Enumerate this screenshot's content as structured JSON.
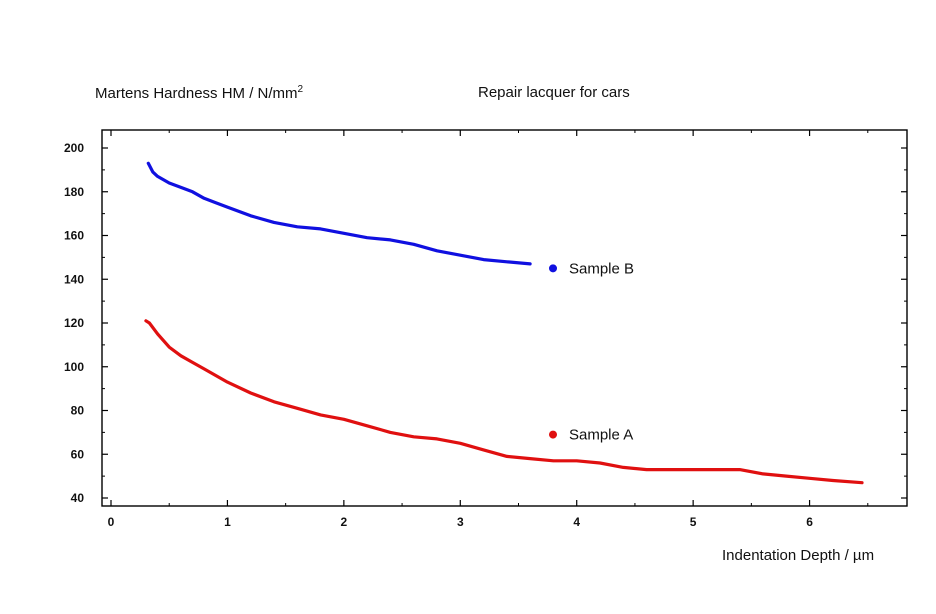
{
  "labels": {
    "ylabel_text": "Martens Hardness HM / N/mm",
    "ylabel_sup": "2",
    "title": "Repair lacquer for cars",
    "xlabel": "Indentation Depth / µm"
  },
  "chart_data": {
    "type": "line",
    "title": "Repair lacquer for cars",
    "xlabel": "Indentation Depth / µm",
    "ylabel": "Martens Hardness HM / N/mm2",
    "xlim": [
      0,
      6.8
    ],
    "ylim": [
      38,
      206
    ],
    "xticks": [
      0,
      1,
      2,
      3,
      4,
      5,
      6
    ],
    "yticks": [
      40,
      60,
      80,
      100,
      120,
      140,
      160,
      180,
      200
    ],
    "grid": false,
    "legend_position": "inline-right",
    "series": [
      {
        "name": "Sample B",
        "color": "#1010e0",
        "x": [
          0.32,
          0.36,
          0.4,
          0.5,
          0.6,
          0.7,
          0.8,
          0.9,
          1.0,
          1.2,
          1.4,
          1.6,
          1.8,
          2.0,
          2.2,
          2.4,
          2.6,
          2.8,
          3.0,
          3.2,
          3.4,
          3.6
        ],
        "y": [
          193,
          189,
          187,
          184,
          182,
          180,
          177,
          175,
          173,
          169,
          166,
          164,
          163,
          161,
          159,
          158,
          156,
          153,
          151,
          149,
          148,
          147
        ]
      },
      {
        "name": "Sample A",
        "color": "#e01010",
        "x": [
          0.3,
          0.33,
          0.4,
          0.5,
          0.6,
          0.7,
          0.8,
          1.0,
          1.2,
          1.4,
          1.6,
          1.8,
          2.0,
          2.2,
          2.4,
          2.6,
          2.8,
          3.0,
          3.2,
          3.4,
          3.6,
          3.8,
          4.0,
          4.2,
          4.4,
          4.6,
          4.8,
          5.0,
          5.2,
          5.4,
          5.6,
          5.8,
          6.0,
          6.2,
          6.45
        ],
        "y": [
          121,
          120,
          115,
          109,
          105,
          102,
          99,
          93,
          88,
          84,
          81,
          78,
          76,
          73,
          70,
          68,
          67,
          65,
          62,
          59,
          58,
          57,
          57,
          56,
          54,
          53,
          53,
          53,
          53,
          53,
          51,
          50,
          49,
          48,
          47
        ]
      }
    ]
  }
}
